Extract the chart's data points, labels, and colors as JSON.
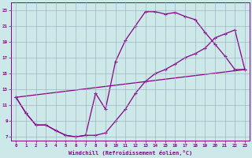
{
  "xlabel": "Windchill (Refroidissement éolien,°C)",
  "bg_color": "#cce8e8",
  "line_color": "#880088",
  "grid_color": "#99aabb",
  "xlim": [
    -0.5,
    23.5
  ],
  "ylim": [
    6.5,
    24
  ],
  "xticks": [
    0,
    1,
    2,
    3,
    4,
    5,
    6,
    7,
    8,
    9,
    10,
    11,
    12,
    13,
    14,
    15,
    16,
    17,
    18,
    19,
    20,
    21,
    22,
    23
  ],
  "yticks": [
    7,
    9,
    11,
    13,
    15,
    17,
    19,
    21,
    23
  ],
  "line1_x": [
    0,
    1,
    2,
    3,
    4,
    5,
    6,
    7,
    8,
    9,
    10,
    11,
    12,
    13,
    14,
    15,
    16,
    17,
    18,
    19,
    20,
    21,
    22,
    23
  ],
  "line1_y": [
    12.0,
    10.0,
    8.5,
    8.5,
    7.8,
    7.2,
    7.0,
    7.2,
    12.5,
    10.5,
    16.5,
    19.2,
    21.0,
    22.8,
    22.8,
    22.5,
    22.7,
    22.2,
    21.8,
    20.2,
    18.7,
    17.2,
    15.5,
    15.5
  ],
  "line2_x": [
    0,
    1,
    2,
    3,
    4,
    5,
    6,
    7,
    8,
    9,
    10,
    11,
    12,
    13,
    14,
    15,
    16,
    17,
    18,
    19,
    20,
    21,
    22,
    23
  ],
  "line2_y": [
    12.0,
    10.0,
    8.5,
    8.5,
    7.8,
    7.2,
    7.0,
    7.2,
    7.2,
    7.5,
    9.0,
    10.5,
    12.5,
    14.0,
    15.0,
    15.5,
    16.2,
    17.0,
    17.5,
    18.2,
    19.5,
    20.0,
    20.5,
    15.5
  ],
  "line3_x": [
    0,
    23
  ],
  "line3_y": [
    12.0,
    15.5
  ],
  "marker": "+",
  "markersize": 3,
  "linewidth": 0.9
}
